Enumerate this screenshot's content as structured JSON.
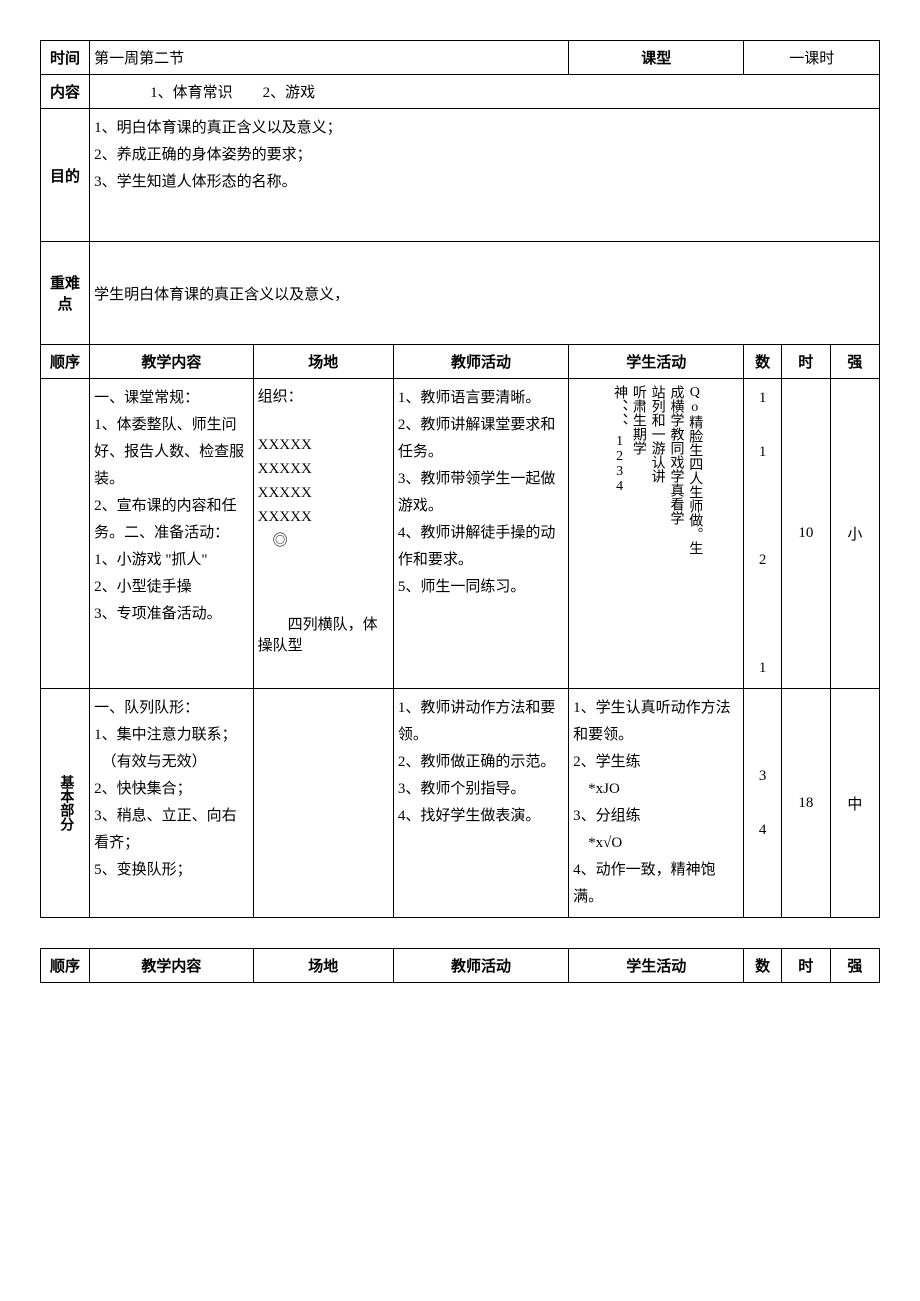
{
  "header": {
    "time_label": "时间",
    "time_value": "第一周第二节",
    "class_type_label": "课型",
    "class_type_value": "一课时",
    "content_label": "内容",
    "content_value": "1、体育常识　　2、游戏",
    "goal_label": "目的",
    "goal_lines": "1、明白体育课的真正含义以及意义；\n2、养成正确的身体姿势的要求；\n3、学生知道人体形态的名称。",
    "difficulty_label": "重难点",
    "difficulty_value": "学生明白体育课的真正含义以及意义，"
  },
  "columns": {
    "seq": "顺序",
    "content": "教学内容",
    "venue": "场地",
    "teacher": "教师活动",
    "student": "学生活动",
    "num": "数",
    "time": "时",
    "intensity": "强"
  },
  "row1": {
    "seq": "",
    "content": "一、课堂常规：\n1、体委整队、师生问好、报告人数、检查服装。\n2、宣布课的内容和任务。二、准备活动：\n1、小游戏 \"抓人\"\n2、小型徒手操\n3、专项准备活动。",
    "venue_top": "组织：\n\nXXXXX\nXXXXX\nXXXXX\nXXXXX\n　◎",
    "venue_bottom": "　　四列横队，体操队型",
    "teacher": "1、教师语言要清晰。\n2、教师讲解课堂要求和任务。\n3、教师带领学生一起做游戏。\n4、教师讲解徒手操的动作和要求。\n5、师生一同练习。",
    "student_cols": [
      "神、、、、1234",
      "听肃生期学",
      "站列和一游认讲",
      "成横学教同戏学真看学",
      "Qo精脸生四人生师做。生"
    ],
    "num": "1\n\n1\n\n\n\n2\n\n\n\n1",
    "time": "10",
    "intensity": "小"
  },
  "row2": {
    "seq": "基本部分",
    "content": "一、队列队形：\n1、集中注意力联系；\n　（有效与无效）\n2、快快集合；\n3、稍息、立正、向右看齐；\n5、变换队形；",
    "venue": "",
    "teacher": "1、教师讲动作方法和要领。\n2、教师做正确的示范。\n3、教师个别指导。\n4、找好学生做表演。",
    "student": "1、学生认真听动作方法和要领。\n2、学生练\n　*xJO\n3、分组练\n　*x√O\n4、动作一致，精神饱满。",
    "num": "3\n\n4",
    "time": "18",
    "intensity": "中"
  }
}
